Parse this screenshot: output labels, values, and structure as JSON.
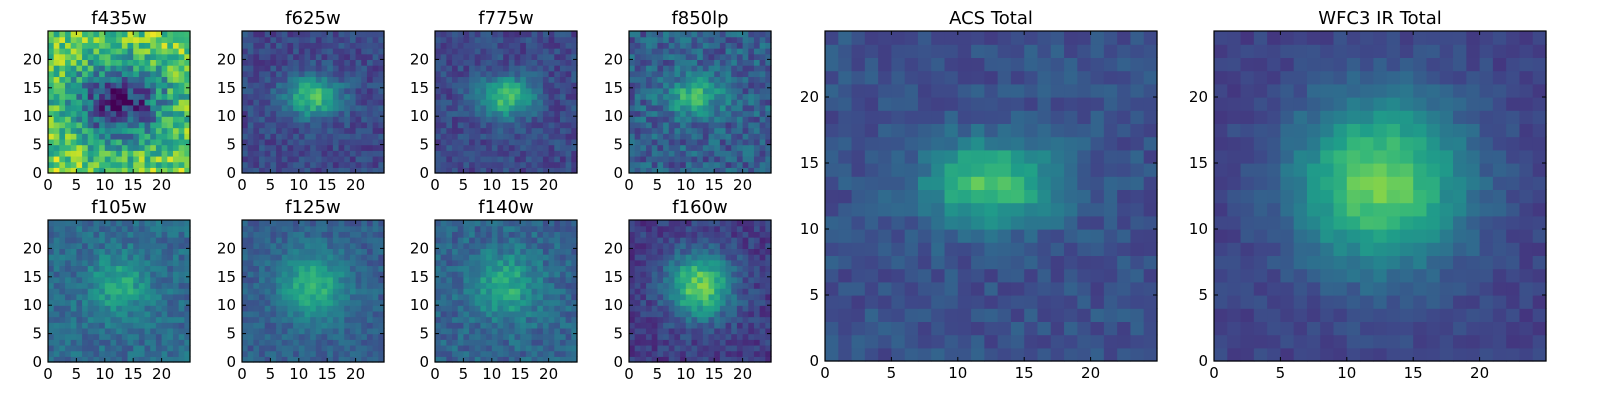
{
  "figure": {
    "panel_count": 10,
    "colormap": "viridis",
    "colormap_stops": [
      "#440154",
      "#482878",
      "#3e4989",
      "#31688e",
      "#26828e",
      "#1f9e89",
      "#35b779",
      "#6ece58",
      "#b5de2b",
      "#fde725"
    ]
  },
  "chart_data": [
    {
      "type": "heatmap",
      "title": "f435w",
      "grid_size": [
        25,
        25
      ],
      "xlim": [
        0,
        25
      ],
      "ylim": [
        0,
        25
      ],
      "xticks": [
        0,
        5,
        10,
        15,
        20
      ],
      "yticks": [
        0,
        5,
        10,
        15,
        20
      ],
      "grid": false,
      "peak": [
        12,
        12
      ],
      "peak_spread": [
        6,
        5
      ],
      "background_level": 0.78,
      "peak_level": 0.1,
      "noise": 0.22
    },
    {
      "type": "heatmap",
      "title": "f625w",
      "grid_size": [
        25,
        25
      ],
      "xlim": [
        0,
        25
      ],
      "ylim": [
        0,
        25
      ],
      "xticks": [
        0,
        5,
        10,
        15,
        20
      ],
      "yticks": [
        0,
        5,
        10,
        15,
        20
      ],
      "grid": false,
      "peak": [
        12,
        13
      ],
      "peak_spread": [
        3.5,
        2.5
      ],
      "background_level": 0.22,
      "peak_level": 0.72,
      "noise": 0.09
    },
    {
      "type": "heatmap",
      "title": "f775w",
      "grid_size": [
        25,
        25
      ],
      "xlim": [
        0,
        25
      ],
      "ylim": [
        0,
        25
      ],
      "xticks": [
        0,
        5,
        10,
        15,
        20
      ],
      "yticks": [
        0,
        5,
        10,
        15,
        20
      ],
      "grid": false,
      "peak": [
        12,
        13
      ],
      "peak_spread": [
        3.5,
        2.5
      ],
      "background_level": 0.22,
      "peak_level": 0.72,
      "noise": 0.09
    },
    {
      "type": "heatmap",
      "title": "f850lp",
      "grid_size": [
        25,
        25
      ],
      "xlim": [
        0,
        25
      ],
      "ylim": [
        0,
        25
      ],
      "xticks": [
        0,
        5,
        10,
        15,
        20
      ],
      "yticks": [
        0,
        5,
        10,
        15,
        20
      ],
      "grid": false,
      "peak": [
        11,
        13
      ],
      "peak_spread": [
        3.5,
        2.5
      ],
      "background_level": 0.3,
      "peak_level": 0.65,
      "noise": 0.14
    },
    {
      "type": "heatmap",
      "title": "f105w",
      "grid_size": [
        25,
        25
      ],
      "xlim": [
        0,
        25
      ],
      "ylim": [
        0,
        25
      ],
      "xticks": [
        0,
        5,
        10,
        15,
        20
      ],
      "yticks": [
        0,
        5,
        10,
        15,
        20
      ],
      "grid": false,
      "peak": [
        12,
        13
      ],
      "peak_spread": [
        3.5,
        3.5
      ],
      "background_level": 0.35,
      "peak_level": 0.62,
      "noise": 0.1
    },
    {
      "type": "heatmap",
      "title": "f125w",
      "grid_size": [
        25,
        25
      ],
      "xlim": [
        0,
        25
      ],
      "ylim": [
        0,
        25
      ],
      "xticks": [
        0,
        5,
        10,
        15,
        20
      ],
      "yticks": [
        0,
        5,
        10,
        15,
        20
      ],
      "grid": false,
      "peak": [
        12,
        13
      ],
      "peak_spread": [
        4,
        4
      ],
      "background_level": 0.3,
      "peak_level": 0.66,
      "noise": 0.08
    },
    {
      "type": "heatmap",
      "title": "f140w",
      "grid_size": [
        25,
        25
      ],
      "xlim": [
        0,
        25
      ],
      "ylim": [
        0,
        25
      ],
      "xticks": [
        0,
        5,
        10,
        15,
        20
      ],
      "yticks": [
        0,
        5,
        10,
        15,
        20
      ],
      "grid": false,
      "peak": [
        12,
        13
      ],
      "peak_spread": [
        4,
        4
      ],
      "background_level": 0.32,
      "peak_level": 0.62,
      "noise": 0.1
    },
    {
      "type": "heatmap",
      "title": "f160w",
      "grid_size": [
        25,
        25
      ],
      "xlim": [
        0,
        25
      ],
      "ylim": [
        0,
        25
      ],
      "xticks": [
        0,
        5,
        10,
        15,
        20
      ],
      "yticks": [
        0,
        5,
        10,
        15,
        20
      ],
      "grid": false,
      "peak": [
        12,
        13
      ],
      "peak_spread": [
        4,
        4
      ],
      "background_level": 0.18,
      "peak_level": 0.78,
      "noise": 0.09
    },
    {
      "type": "heatmap",
      "title": "ACS Total",
      "grid_size": [
        25,
        25
      ],
      "xlim": [
        0,
        25
      ],
      "ylim": [
        0,
        25
      ],
      "xticks": [
        0,
        5,
        10,
        15,
        20
      ],
      "yticks": [
        0,
        5,
        10,
        15,
        20
      ],
      "grid": false,
      "peak": [
        12,
        13
      ],
      "peak_spread": [
        3.5,
        2.3
      ],
      "background_level": 0.25,
      "peak_level": 0.72,
      "noise": 0.07
    },
    {
      "type": "heatmap",
      "title": "WFC3 IR Total",
      "grid_size": [
        25,
        25
      ],
      "xlim": [
        0,
        25
      ],
      "ylim": [
        0,
        25
      ],
      "xticks": [
        0,
        5,
        10,
        15,
        20
      ],
      "yticks": [
        0,
        5,
        10,
        15,
        20
      ],
      "grid": false,
      "peak": [
        12,
        13
      ],
      "peak_spread": [
        4.5,
        4.5
      ],
      "background_level": 0.2,
      "peak_level": 0.78,
      "noise": 0.05
    }
  ]
}
